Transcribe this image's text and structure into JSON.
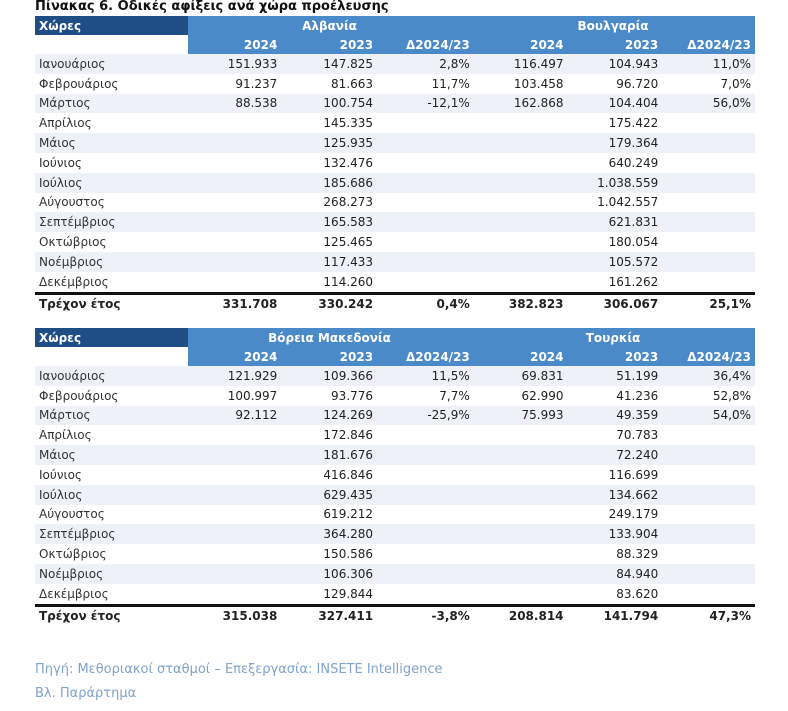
{
  "title": "Πίνακας 6. Οδικές αφίξεις ανά χώρα προέλευσης",
  "tables": [
    {
      "label": "Χώρες",
      "groups": [
        "Αλβανία",
        "Βουλγαρία"
      ],
      "columns": [
        "2024",
        "2023",
        "Δ2024/23",
        "2024",
        "2023",
        "Δ2024/23"
      ],
      "rows": [
        [
          "Ιανουάριος",
          "151.933",
          "147.825",
          "2,8%",
          "116.497",
          "104.943",
          "11,0%"
        ],
        [
          "Φεβρουάριος",
          "91.237",
          "81.663",
          "11,7%",
          "103.458",
          "96.720",
          "7,0%"
        ],
        [
          "Μάρτιος",
          "88.538",
          "100.754",
          "-12,1%",
          "162.868",
          "104.404",
          "56,0%"
        ],
        [
          "Απρίλιος",
          "",
          "145.335",
          "",
          "",
          "175.422",
          ""
        ],
        [
          "Μάιος",
          "",
          "125.935",
          "",
          "",
          "179.364",
          ""
        ],
        [
          "Ιούνιος",
          "",
          "132.476",
          "",
          "",
          "640.249",
          ""
        ],
        [
          "Ιούλιος",
          "",
          "185.686",
          "",
          "",
          "1.038.559",
          ""
        ],
        [
          "Αύγουστος",
          "",
          "268.273",
          "",
          "",
          "1.042.557",
          ""
        ],
        [
          "Σεπτέμβριος",
          "",
          "165.583",
          "",
          "",
          "621.831",
          ""
        ],
        [
          "Οκτώβριος",
          "",
          "125.465",
          "",
          "",
          "180.054",
          ""
        ],
        [
          "Νοέμβριος",
          "",
          "117.433",
          "",
          "",
          "105.572",
          ""
        ],
        [
          "Δεκέμβριος",
          "",
          "114.260",
          "",
          "",
          "161.262",
          ""
        ]
      ],
      "total": [
        "Τρέχον έτος",
        "331.708",
        "330.242",
        "0,4%",
        "382.823",
        "306.067",
        "25,1%"
      ]
    },
    {
      "label": "Χώρες",
      "groups": [
        "Βόρεια Μακεδονία",
        "Τουρκία"
      ],
      "columns": [
        "2024",
        "2023",
        "Δ2024/23",
        "2024",
        "2023",
        "Δ2024/23"
      ],
      "rows": [
        [
          "Ιανουάριος",
          "121.929",
          "109.366",
          "11,5%",
          "69.831",
          "51.199",
          "36,4%"
        ],
        [
          "Φεβρουάριος",
          "100.997",
          "93.776",
          "7,7%",
          "62.990",
          "41.236",
          "52,8%"
        ],
        [
          "Μάρτιος",
          "92.112",
          "124.269",
          "-25,9%",
          "75.993",
          "49.359",
          "54,0%"
        ],
        [
          "Απρίλιος",
          "",
          "172.846",
          "",
          "",
          "70.783",
          ""
        ],
        [
          "Μάιος",
          "",
          "181.676",
          "",
          "",
          "72.240",
          ""
        ],
        [
          "Ιούνιος",
          "",
          "416.846",
          "",
          "",
          "116.699",
          ""
        ],
        [
          "Ιούλιος",
          "",
          "629.435",
          "",
          "",
          "134.662",
          ""
        ],
        [
          "Αύγουστος",
          "",
          "619.212",
          "",
          "",
          "249.179",
          ""
        ],
        [
          "Σεπτέμβριος",
          "",
          "364.280",
          "",
          "",
          "133.904",
          ""
        ],
        [
          "Οκτώβριος",
          "",
          "150.586",
          "",
          "",
          "88.329",
          ""
        ],
        [
          "Νοέμβριος",
          "",
          "106.306",
          "",
          "",
          "84.940",
          ""
        ],
        [
          "Δεκέμβριος",
          "",
          "129.844",
          "",
          "",
          "83.620",
          ""
        ]
      ],
      "total": [
        "Τρέχον έτος",
        "315.038",
        "327.411",
        "-3,8%",
        "208.814",
        "141.794",
        "47,3%"
      ]
    }
  ],
  "footer": {
    "source": "Πηγή: Μεθοριακοί  σταθμοί – Επεξεργασία: INSETE Intelligence",
    "note": "Βλ. Παράρτημα"
  },
  "colors": {
    "header_dark": "#1f4e86",
    "header_blue": "#4a8ac9",
    "row_stripe": "#eef1f7",
    "footer_text": "#7fa3c9"
  }
}
